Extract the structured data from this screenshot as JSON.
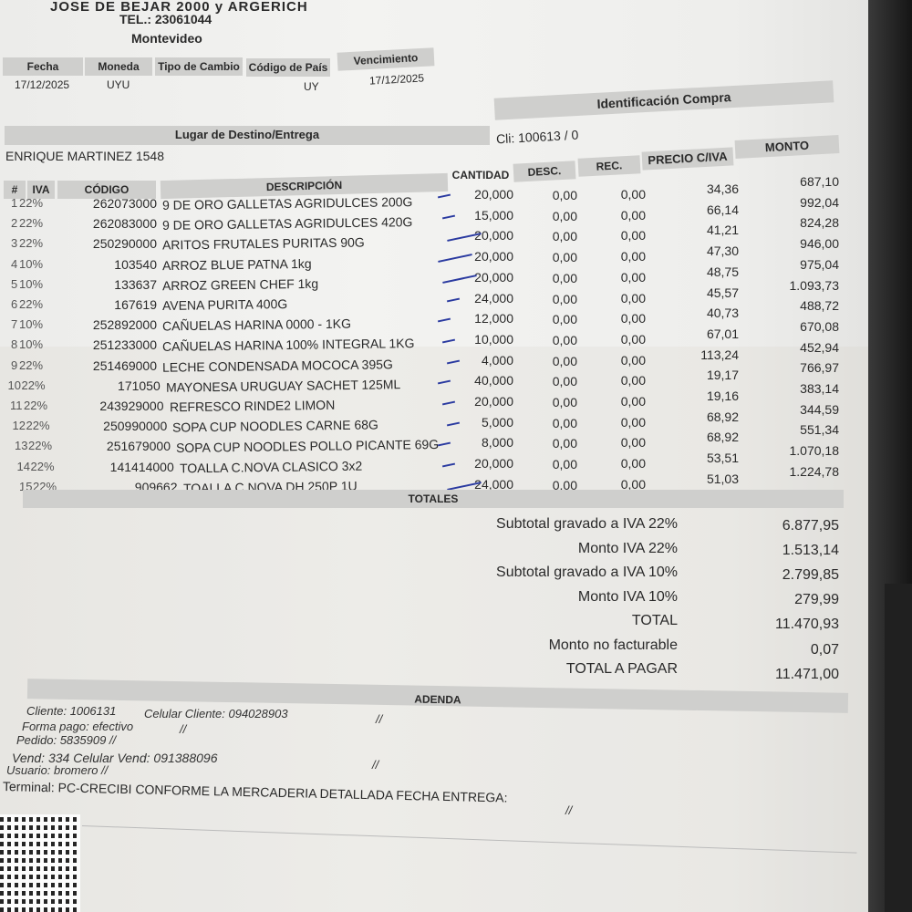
{
  "header": {
    "address": "JOSE DE BEJAR 2000 y ARGERICH",
    "phone": "TEL.: 23061044",
    "city": "Montevideo"
  },
  "info": {
    "labels": [
      "Fecha",
      "Moneda",
      "Tipo de Cambio",
      "Código de País",
      "Vencimiento"
    ],
    "values": [
      "17/12/2025",
      "UYU",
      "",
      "UY",
      "17/12/2025"
    ]
  },
  "destino": {
    "title": "Lugar de Destino/Entrega",
    "address": "ENRIQUE MARTINEZ 1548"
  },
  "compra": {
    "title": "Identificación Compra",
    "cliente": "Cli: 100613 / 0"
  },
  "table": {
    "headers": [
      "#",
      "IVA",
      "CÓDIGO",
      "DESCRIPCIÓN",
      "CANTIDAD",
      "DESC.",
      "REC.",
      "PRECIO C/IVA",
      "MONTO"
    ],
    "rows": [
      {
        "n": "1",
        "iva": "22%",
        "codigo": "262073000",
        "desc": "9 DE ORO GALLETAS AGRIDULCES 200G",
        "cant": "20,000",
        "dto": "0,00",
        "rec": "0,00",
        "precio": "34,36",
        "monto": "687,10"
      },
      {
        "n": "2",
        "iva": "22%",
        "codigo": "262083000",
        "desc": "9 DE ORO GALLETAS AGRIDULCES 420G",
        "cant": "15,000",
        "dto": "0,00",
        "rec": "0,00",
        "precio": "66,14",
        "monto": "992,04"
      },
      {
        "n": "3",
        "iva": "22%",
        "codigo": "250290000",
        "desc": "ARITOS FRUTALES PURITAS 90G",
        "cant": "20,000",
        "dto": "0,00",
        "rec": "0,00",
        "precio": "41,21",
        "monto": "824,28"
      },
      {
        "n": "4",
        "iva": "10%",
        "codigo": "103540",
        "desc": "ARROZ BLUE PATNA 1kg",
        "cant": "20,000",
        "dto": "0,00",
        "rec": "0,00",
        "precio": "47,30",
        "monto": "946,00"
      },
      {
        "n": "5",
        "iva": "10%",
        "codigo": "133637",
        "desc": "ARROZ GREEN CHEF 1kg",
        "cant": "20,000",
        "dto": "0,00",
        "rec": "0,00",
        "precio": "48,75",
        "monto": "975,04"
      },
      {
        "n": "6",
        "iva": "22%",
        "codigo": "167619",
        "desc": "AVENA PURITA 400G",
        "cant": "24,000",
        "dto": "0,00",
        "rec": "0,00",
        "precio": "45,57",
        "monto": "1.093,73"
      },
      {
        "n": "7",
        "iva": "10%",
        "codigo": "252892000",
        "desc": "CAÑUELAS HARINA 0000 - 1KG",
        "cant": "12,000",
        "dto": "0,00",
        "rec": "0,00",
        "precio": "40,73",
        "monto": "488,72"
      },
      {
        "n": "8",
        "iva": "10%",
        "codigo": "251233000",
        "desc": "CAÑUELAS HARINA 100% INTEGRAL 1KG",
        "cant": "10,000",
        "dto": "0,00",
        "rec": "0,00",
        "precio": "67,01",
        "monto": "670,08"
      },
      {
        "n": "9",
        "iva": "22%",
        "codigo": "251469000",
        "desc": "LECHE CONDENSADA MOCOCA 395G",
        "cant": "4,000",
        "dto": "0,00",
        "rec": "0,00",
        "precio": "113,24",
        "monto": "452,94"
      },
      {
        "n": "10",
        "iva": "22%",
        "codigo": "171050",
        "desc": "MAYONESA URUGUAY SACHET 125ML",
        "cant": "40,000",
        "dto": "0,00",
        "rec": "0,00",
        "precio": "19,17",
        "monto": "766,97"
      },
      {
        "n": "11",
        "iva": "22%",
        "codigo": "243929000",
        "desc": "REFRESCO RINDE2 LIMON",
        "cant": "20,000",
        "dto": "0,00",
        "rec": "0,00",
        "precio": "19,16",
        "monto": "383,14"
      },
      {
        "n": "12",
        "iva": "22%",
        "codigo": "250990000",
        "desc": "SOPA CUP NOODLES CARNE 68G",
        "cant": "5,000",
        "dto": "0,00",
        "rec": "0,00",
        "precio": "68,92",
        "monto": "344,59"
      },
      {
        "n": "13",
        "iva": "22%",
        "codigo": "251679000",
        "desc": "SOPA CUP NOODLES POLLO PICANTE 69G",
        "cant": "8,000",
        "dto": "0,00",
        "rec": "0,00",
        "precio": "68,92",
        "monto": "551,34"
      },
      {
        "n": "14",
        "iva": "22%",
        "codigo": "141414000",
        "desc": "TOALLA C.NOVA CLASICO 3x2",
        "cant": "20,000",
        "dto": "0,00",
        "rec": "0,00",
        "precio": "53,51",
        "monto": "1.070,18"
      },
      {
        "n": "15",
        "iva": "22%",
        "codigo": "909662",
        "desc": "TOALLA C.NOVA DH 250P 1U",
        "cant": "24,000",
        "dto": "0,00",
        "rec": "0,00",
        "precio": "51,03",
        "monto": "1.224,78"
      }
    ]
  },
  "totales": {
    "title": "TOTALES",
    "lines": [
      {
        "label": "Subtotal gravado a IVA 22%",
        "value": "6.877,95"
      },
      {
        "label": "Monto IVA 22%",
        "value": "1.513,14"
      },
      {
        "label": "Subtotal gravado a IVA 10%",
        "value": "2.799,85"
      },
      {
        "label": "Monto IVA 10%",
        "value": "279,99"
      },
      {
        "label": "TOTAL",
        "value": "11.470,93"
      },
      {
        "label": "Monto no facturable",
        "value": "0,07"
      },
      {
        "label": "TOTAL A PAGAR",
        "value": "11.471,00"
      }
    ]
  },
  "adenda": {
    "title": "ADENDA",
    "cliente": "Cliente: 1006131",
    "celular_cliente": "Celular Cliente: 094028903",
    "forma_pago": "Forma pago: efectivo",
    "pedido": "Pedido: 5835909  //",
    "vendedor": "Vend: 334  Celular Vend: 091388096",
    "usuario": "Usuario: bromero    //",
    "terminal": "Terminal: PC-CRECIBI CONFORME LA MERCADERIA DETALLADA FECHA ENTREGA:",
    "sep": "//"
  }
}
